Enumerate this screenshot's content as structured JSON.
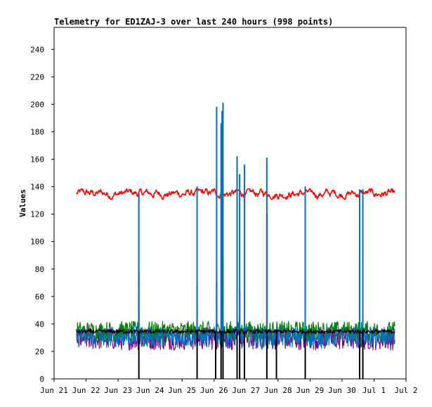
{
  "chart_data": {
    "type": "line",
    "title": "Telemetry for ED1ZAJ-3 over last 240 hours (998 points)",
    "xlabel": "",
    "ylabel": "Values",
    "ylim": [
      0,
      256
    ],
    "xlim": [
      "Jun 21",
      "Jul 2"
    ],
    "x_ticks": [
      "Jun 21",
      "Jun 22",
      "Jun 23",
      "Jun 24",
      "Jun 25",
      "Jun 26",
      "Jun 27",
      "Jun 28",
      "Jun 29",
      "Jun 30",
      "Jul 1",
      "Jul 2"
    ],
    "y_ticks": [
      0,
      20,
      40,
      60,
      80,
      100,
      120,
      140,
      160,
      180,
      200,
      220,
      240
    ],
    "x_range_days": [
      21.7,
      31.65
    ],
    "legend": "none",
    "grid": false,
    "series": [
      {
        "color": "#ff0000",
        "baseline": 135,
        "band": [
          130,
          139
        ],
        "spikes": []
      },
      {
        "color": "#800080",
        "baseline": 30,
        "band": [
          21,
          38
        ],
        "spikes": [
          {
            "x": 23.65,
            "y": 78
          },
          {
            "x": 25.47,
            "y": 68
          },
          {
            "x": 26.08,
            "y": 70
          },
          {
            "x": 26.25,
            "y": 55
          },
          {
            "x": 26.28,
            "y": 85
          },
          {
            "x": 26.72,
            "y": 95
          },
          {
            "x": 26.8,
            "y": 65
          },
          {
            "x": 26.95,
            "y": 65
          },
          {
            "x": 27.65,
            "y": 120
          },
          {
            "x": 28.85,
            "y": 70
          },
          {
            "x": 30.55,
            "y": 88
          },
          {
            "x": 30.65,
            "y": 70
          }
        ]
      },
      {
        "color": "#008000",
        "baseline": 34,
        "band": [
          27,
          42
        ],
        "spikes": []
      },
      {
        "color": "#0070c0",
        "baseline": 30,
        "band": [
          23,
          38
        ],
        "spikes": [
          {
            "x": 23.65,
            "y": 135
          },
          {
            "x": 25.47,
            "y": 140
          },
          {
            "x": 26.08,
            "y": 198
          },
          {
            "x": 26.22,
            "y": 186
          },
          {
            "x": 26.25,
            "y": 195
          },
          {
            "x": 26.28,
            "y": 201
          },
          {
            "x": 26.72,
            "y": 162
          },
          {
            "x": 26.8,
            "y": 149
          },
          {
            "x": 26.95,
            "y": 156
          },
          {
            "x": 27.65,
            "y": 161
          },
          {
            "x": 28.85,
            "y": 140
          },
          {
            "x": 30.55,
            "y": 138
          },
          {
            "x": 30.65,
            "y": 138
          }
        ]
      },
      {
        "color": "#000000",
        "baseline": 34,
        "band": [
          33,
          36
        ],
        "spikes": [
          {
            "x": 23.65,
            "y": 0
          },
          {
            "x": 25.47,
            "y": 0
          },
          {
            "x": 26.05,
            "y": 0
          },
          {
            "x": 26.22,
            "y": 0
          },
          {
            "x": 26.28,
            "y": 0
          },
          {
            "x": 26.72,
            "y": 0
          },
          {
            "x": 26.8,
            "y": 0
          },
          {
            "x": 26.95,
            "y": 0
          },
          {
            "x": 27.65,
            "y": 0
          },
          {
            "x": 27.95,
            "y": 0
          },
          {
            "x": 28.85,
            "y": 0
          },
          {
            "x": 30.55,
            "y": 0
          },
          {
            "x": 30.65,
            "y": 0
          }
        ]
      }
    ]
  }
}
